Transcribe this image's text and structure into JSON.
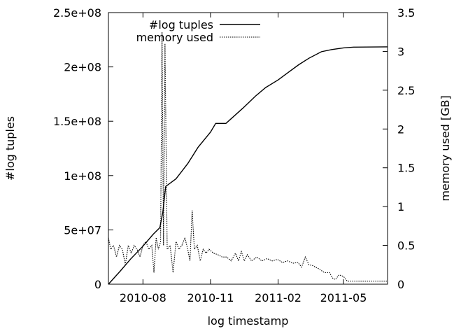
{
  "chart_data": {
    "type": "line",
    "title": "",
    "xlabel": "log timestamp",
    "ylabel_left": "#log tuples",
    "ylabel_right": "memory used [GB]",
    "x_tick_labels": [
      "2010-08",
      "2010-11",
      "2011-02",
      "2011-05"
    ],
    "x_ticks": [
      "2010-08-01",
      "2010-11-01",
      "2011-02-01",
      "2011-05-01"
    ],
    "xlim": [
      "2010-06-15",
      "2011-06-30"
    ],
    "y_left_ticks": [
      0,
      50000000,
      100000000,
      150000000,
      200000000,
      250000000
    ],
    "y_left_tick_labels": [
      "0",
      "5e+07",
      "1e+08",
      "1.5e+08",
      "2e+08",
      "2.5e+08"
    ],
    "y_left_lim": [
      0,
      250000000
    ],
    "y_right_ticks": [
      0,
      0.5,
      1,
      1.5,
      2,
      2.5,
      3,
      3.5
    ],
    "y_right_tick_labels": [
      "0",
      "0.5",
      "1",
      "1.5",
      "2",
      "2.5",
      "3",
      "3.5"
    ],
    "y_right_lim": [
      0,
      3.5
    ],
    "grid": false,
    "legend": {
      "position": "top-center"
    },
    "series": [
      {
        "name": "#log tuples",
        "axis": "left",
        "style": "solid",
        "color": "#000000",
        "points": [
          [
            "2010-06-15",
            0
          ],
          [
            "2010-07-01",
            12000000
          ],
          [
            "2010-07-15",
            23000000
          ],
          [
            "2010-08-01",
            35000000
          ],
          [
            "2010-08-15",
            46000000
          ],
          [
            "2010-08-24",
            52000000
          ],
          [
            "2010-08-28",
            66000000
          ],
          [
            "2010-09-01",
            90000000
          ],
          [
            "2010-09-15",
            97000000
          ],
          [
            "2010-10-01",
            111000000
          ],
          [
            "2010-10-15",
            126000000
          ],
          [
            "2010-11-01",
            140000000
          ],
          [
            "2010-11-08",
            148000000
          ],
          [
            "2010-11-22",
            148000000
          ],
          [
            "2010-12-15",
            162000000
          ],
          [
            "2011-01-01",
            173000000
          ],
          [
            "2011-01-15",
            181000000
          ],
          [
            "2011-02-01",
            188000000
          ],
          [
            "2011-02-15",
            195000000
          ],
          [
            "2011-03-01",
            202000000
          ],
          [
            "2011-03-15",
            208000000
          ],
          [
            "2011-04-01",
            214000000
          ],
          [
            "2011-04-15",
            216000000
          ],
          [
            "2011-05-01",
            217500000
          ],
          [
            "2011-05-15",
            218200000
          ],
          [
            "2011-06-30",
            218500000
          ]
        ]
      },
      {
        "name": "memory used",
        "axis": "right",
        "style": "dotted",
        "color": "#000000",
        "points": [
          [
            "2010-06-15",
            0.6
          ],
          [
            "2010-06-18",
            0.45
          ],
          [
            "2010-06-22",
            0.5
          ],
          [
            "2010-06-26",
            0.35
          ],
          [
            "2010-06-30",
            0.5
          ],
          [
            "2010-07-04",
            0.45
          ],
          [
            "2010-07-08",
            0.25
          ],
          [
            "2010-07-12",
            0.5
          ],
          [
            "2010-07-16",
            0.4
          ],
          [
            "2010-07-20",
            0.5
          ],
          [
            "2010-07-24",
            0.45
          ],
          [
            "2010-07-28",
            0.35
          ],
          [
            "2010-08-01",
            0.5
          ],
          [
            "2010-08-05",
            0.55
          ],
          [
            "2010-08-09",
            0.45
          ],
          [
            "2010-08-13",
            0.5
          ],
          [
            "2010-08-16",
            0.15
          ],
          [
            "2010-08-19",
            0.6
          ],
          [
            "2010-08-22",
            0.45
          ],
          [
            "2010-08-25",
            0.55
          ],
          [
            "2010-08-27",
            3.25
          ],
          [
            "2010-08-29",
            0.5
          ],
          [
            "2010-08-31",
            3.1
          ],
          [
            "2010-09-03",
            0.45
          ],
          [
            "2010-09-07",
            0.5
          ],
          [
            "2010-09-11",
            0.15
          ],
          [
            "2010-09-15",
            0.55
          ],
          [
            "2010-09-19",
            0.45
          ],
          [
            "2010-09-23",
            0.5
          ],
          [
            "2010-09-27",
            0.6
          ],
          [
            "2010-10-01",
            0.45
          ],
          [
            "2010-10-04",
            0.3
          ],
          [
            "2010-10-07",
            0.95
          ],
          [
            "2010-10-10",
            0.45
          ],
          [
            "2010-10-14",
            0.5
          ],
          [
            "2010-10-18",
            0.3
          ],
          [
            "2010-10-22",
            0.45
          ],
          [
            "2010-10-26",
            0.4
          ],
          [
            "2010-10-30",
            0.45
          ],
          [
            "2010-11-05",
            0.4
          ],
          [
            "2010-11-11",
            0.38
          ],
          [
            "2010-11-17",
            0.35
          ],
          [
            "2010-11-23",
            0.35
          ],
          [
            "2010-11-29",
            0.3
          ],
          [
            "2010-12-05",
            0.4
          ],
          [
            "2010-12-09",
            0.3
          ],
          [
            "2010-12-13",
            0.42
          ],
          [
            "2010-12-17",
            0.3
          ],
          [
            "2010-12-21",
            0.38
          ],
          [
            "2010-12-27",
            0.3
          ],
          [
            "2011-01-03",
            0.35
          ],
          [
            "2011-01-10",
            0.3
          ],
          [
            "2011-01-17",
            0.33
          ],
          [
            "2011-01-24",
            0.3
          ],
          [
            "2011-01-31",
            0.32
          ],
          [
            "2011-02-07",
            0.28
          ],
          [
            "2011-02-14",
            0.3
          ],
          [
            "2011-02-21",
            0.27
          ],
          [
            "2011-02-28",
            0.28
          ],
          [
            "2011-03-05",
            0.22
          ],
          [
            "2011-03-10",
            0.35
          ],
          [
            "2011-03-15",
            0.25
          ],
          [
            "2011-03-20",
            0.24
          ],
          [
            "2011-03-28",
            0.2
          ],
          [
            "2011-04-05",
            0.15
          ],
          [
            "2011-04-12",
            0.15
          ],
          [
            "2011-04-16",
            0.08
          ],
          [
            "2011-04-20",
            0.06
          ],
          [
            "2011-04-25",
            0.12
          ],
          [
            "2011-05-01",
            0.1
          ],
          [
            "2011-05-06",
            0.04
          ],
          [
            "2011-05-10",
            0.04
          ],
          [
            "2011-05-20",
            0.04
          ],
          [
            "2011-06-30",
            0.04
          ]
        ]
      }
    ]
  }
}
